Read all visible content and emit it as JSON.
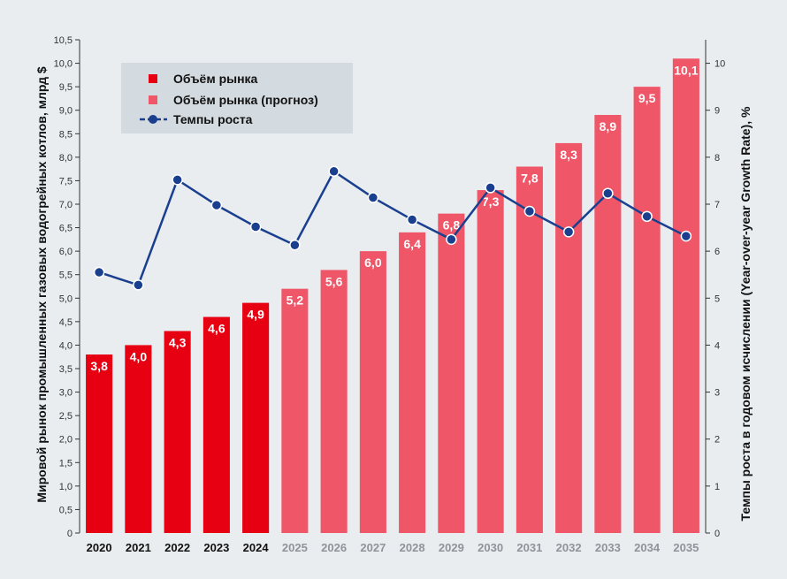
{
  "chart_data": {
    "type": "bar",
    "categories": [
      "2020",
      "2021",
      "2022",
      "2023",
      "2024",
      "2025",
      "2026",
      "2027",
      "2028",
      "2029",
      "2030",
      "2031",
      "2032",
      "2033",
      "2034",
      "2035"
    ],
    "series": [
      {
        "name": "Объём рынка",
        "kind": "bar",
        "values": [
          3.8,
          4.0,
          4.3,
          4.6,
          4.9,
          null,
          null,
          null,
          null,
          null,
          null,
          null,
          null,
          null,
          null,
          null
        ],
        "labels": [
          "3,8",
          "4,0",
          "4,3",
          "4,6",
          "4,9",
          "",
          "",
          "",
          "",
          "",
          "",
          "",
          "",
          "",
          "",
          ""
        ]
      },
      {
        "name": "Объём рынка (прогноз)",
        "kind": "bar",
        "values": [
          null,
          null,
          null,
          null,
          null,
          5.2,
          5.6,
          6.0,
          6.4,
          6.8,
          7.3,
          7.8,
          8.3,
          8.9,
          9.5,
          10.1
        ],
        "labels": [
          "",
          "",
          "",
          "",
          "",
          "5,2",
          "5,6",
          "6,0",
          "6,4",
          "6,8",
          "7,3",
          "7,8",
          "8,3",
          "8,9",
          "9,5",
          "10,1"
        ]
      },
      {
        "name": "Темпы роста",
        "kind": "line",
        "axis": "right",
        "values": [
          5.55,
          5.28,
          7.52,
          6.98,
          6.52,
          6.13,
          7.7,
          7.14,
          6.67,
          6.25,
          7.35,
          6.85,
          6.41,
          7.23,
          6.74,
          6.32
        ]
      }
    ],
    "y_left": {
      "label": "Мировой рынок промышленных газовых водогрейных котлов, млрд $",
      "range": [
        0,
        10.5
      ],
      "ticks": [
        "0",
        "0,5",
        "1,0",
        "1,5",
        "2,0",
        "2,5",
        "3,0",
        "3,5",
        "4,0",
        "4,5",
        "5,0",
        "5,5",
        "6,0",
        "6,5",
        "7,0",
        "7,5",
        "8,0",
        "8,5",
        "9,0",
        "9,5",
        "10,0",
        "10,5"
      ]
    },
    "y_right": {
      "label": "Темпы роста в годовом исчислении (Year-over-year Growth Rate), %",
      "range": [
        0,
        10.5
      ],
      "ticks": [
        "0",
        "1",
        "2",
        "3",
        "4",
        "5",
        "6",
        "7",
        "8",
        "9",
        "10"
      ]
    },
    "grid": false,
    "legend_position": "top-left",
    "colors": {
      "actual": "#e60012",
      "forecast": "#ef5769",
      "line": "#1a3f8f",
      "actual_year_text": "#111111",
      "forecast_year_text": "#8e9499"
    }
  }
}
